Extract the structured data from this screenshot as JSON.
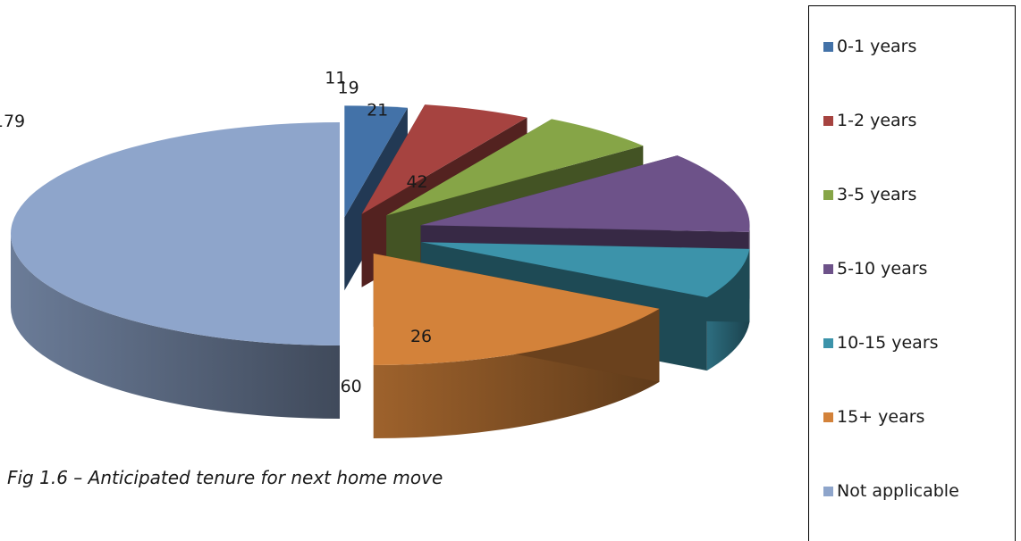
{
  "chart_data": {
    "type": "pie",
    "categories": [
      "0-1 years",
      "1-2 years",
      "3-5 years",
      "5-10 years",
      "10-15 years",
      "15+ years",
      "Not applicable"
    ],
    "values": [
      11,
      19,
      21,
      42,
      26,
      60,
      179
    ],
    "colors": [
      "#4372A8",
      "#A64340",
      "#86A547",
      "#6D5289",
      "#3C93AA",
      "#D3823A",
      "#8EA5CB"
    ],
    "legend_position": "right",
    "three_d": true,
    "exploded": true
  },
  "caption": "Fig 1.6 – Anticipated tenure for next home move"
}
